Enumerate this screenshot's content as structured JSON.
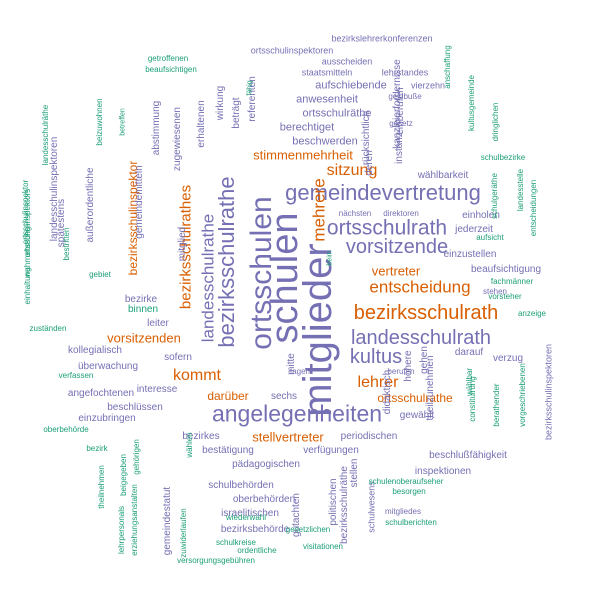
{
  "colors": {
    "purple": "#7570b3",
    "orange": "#d95f02",
    "green": "#1b9e77"
  },
  "words": [
    {
      "text": "mitglieder",
      "color": "purple",
      "rot": -90
    },
    {
      "text": "schulen",
      "color": "purple",
      "rot": -90
    },
    {
      "text": "ortsschulen",
      "color": "purple",
      "rot": -90
    },
    {
      "text": "angelegenheiten",
      "color": "purple",
      "rot": 0
    },
    {
      "text": "gemeindevertretung",
      "color": "purple",
      "rot": 0
    },
    {
      "text": "bezirksschulrathe",
      "color": "purple",
      "rot": -90
    },
    {
      "text": "ortsschulrath",
      "color": "purple",
      "rot": 0
    },
    {
      "text": "landesschulrath",
      "color": "purple",
      "rot": 0
    },
    {
      "text": "vorsitzende",
      "color": "purple",
      "rot": 0
    },
    {
      "text": "kultus",
      "color": "purple",
      "rot": 0
    },
    {
      "text": "bezirksschulrath",
      "color": "orange",
      "rot": 0
    },
    {
      "text": "landesschulrathe",
      "color": "purple",
      "rot": -90
    },
    {
      "text": "mehrere",
      "color": "orange",
      "rot": -90
    },
    {
      "text": "entscheidung",
      "color": "orange",
      "rot": 0
    },
    {
      "text": "bezirksschulrathes",
      "color": "orange",
      "rot": -90
    },
    {
      "text": "lehrer",
      "color": "orange",
      "rot": 0
    },
    {
      "text": "sitzung",
      "color": "orange",
      "rot": 0
    },
    {
      "text": "kommt",
      "color": "orange",
      "rot": 0
    },
    {
      "text": "stimmenmehrheit",
      "color": "orange",
      "rot": 0
    },
    {
      "text": "vertreter",
      "color": "orange",
      "rot": 0
    },
    {
      "text": "vorsitzenden",
      "color": "orange",
      "rot": 0
    },
    {
      "text": "stellvertreter",
      "color": "orange",
      "rot": 0
    },
    {
      "text": "darüber",
      "color": "orange",
      "rot": 0
    },
    {
      "text": "ortsschulrathe",
      "color": "orange",
      "rot": 0
    },
    {
      "text": "bezirksschulinspektor",
      "color": "orange",
      "rot": -90
    },
    {
      "text": "bezirksschulinspektoren",
      "color": "purple",
      "rot": -90
    },
    {
      "text": "bezirkslehrerkonferenzen",
      "color": "purple",
      "rot": 0
    },
    {
      "text": "ortsschulinspektoren",
      "color": "purple",
      "rot": 0
    },
    {
      "text": "ausscheiden",
      "color": "purple",
      "rot": 0
    },
    {
      "text": "staatsmitteln",
      "color": "purple",
      "rot": 0
    },
    {
      "text": "lehrstandes",
      "color": "purple",
      "rot": 0
    },
    {
      "text": "aufschiebende",
      "color": "purple",
      "rot": 0
    },
    {
      "text": "vierzehn",
      "color": "purple",
      "rot": 0
    },
    {
      "text": "geldbuße",
      "color": "purple",
      "rot": 0
    },
    {
      "text": "anwesenheit",
      "color": "purple",
      "rot": 0
    },
    {
      "text": "ortsschulräthe",
      "color": "purple",
      "rot": 0
    },
    {
      "text": "berechtiget",
      "color": "purple",
      "rot": 0
    },
    {
      "text": "beschwerden",
      "color": "purple",
      "rot": 0
    },
    {
      "text": "gesetz",
      "color": "purple",
      "rot": 0
    },
    {
      "text": "wählbarkeit",
      "color": "purple",
      "rot": 0
    },
    {
      "text": "nächsten",
      "color": "purple",
      "rot": 0
    },
    {
      "text": "direktoren",
      "color": "purple",
      "rot": 0
    },
    {
      "text": "einholen",
      "color": "purple",
      "rot": 0
    },
    {
      "text": "jederzeit",
      "color": "purple",
      "rot": 0
    },
    {
      "text": "einzustellen",
      "color": "purple",
      "rot": 0
    },
    {
      "text": "beaufsichtigung",
      "color": "purple",
      "rot": 0
    },
    {
      "text": "stehen",
      "color": "purple",
      "rot": 0
    },
    {
      "text": "darauf",
      "color": "purple",
      "rot": 0
    },
    {
      "text": "verzug",
      "color": "purple",
      "rot": 0
    },
    {
      "text": "berufen",
      "color": "purple",
      "rot": 0
    },
    {
      "text": "tagen",
      "color": "purple",
      "rot": 0
    },
    {
      "text": "sechs",
      "color": "purple",
      "rot": 0
    },
    {
      "text": "sofern",
      "color": "purple",
      "rot": 0
    },
    {
      "text": "interesse",
      "color": "purple",
      "rot": 0
    },
    {
      "text": "beschlüssen",
      "color": "purple",
      "rot": 0
    },
    {
      "text": "bezirkes",
      "color": "purple",
      "rot": 0
    },
    {
      "text": "bestätigung",
      "color": "purple",
      "rot": 0
    },
    {
      "text": "verfügungen",
      "color": "purple",
      "rot": 0
    },
    {
      "text": "periodischen",
      "color": "purple",
      "rot": 0
    },
    {
      "text": "gewählt",
      "color": "purple",
      "rot": 0
    },
    {
      "text": "pädagogischen",
      "color": "purple",
      "rot": 0
    },
    {
      "text": "schulbehörden",
      "color": "purple",
      "rot": 0
    },
    {
      "text": "oberbehörden",
      "color": "purple",
      "rot": 0
    },
    {
      "text": "israelitischen",
      "color": "purple",
      "rot": 0
    },
    {
      "text": "bezirksbehörde",
      "color": "purple",
      "rot": 0
    },
    {
      "text": "beschlußfähigkeit",
      "color": "purple",
      "rot": 0
    },
    {
      "text": "inspektionen",
      "color": "purple",
      "rot": 0
    },
    {
      "text": "bezirke",
      "color": "purple",
      "rot": 0
    },
    {
      "text": "leiter",
      "color": "purple",
      "rot": 0
    },
    {
      "text": "kollegialisch",
      "color": "purple",
      "rot": 0
    },
    {
      "text": "überwachung",
      "color": "purple",
      "rot": 0
    },
    {
      "text": "angefochtenen",
      "color": "purple",
      "rot": 0
    },
    {
      "text": "einzubringen",
      "color": "purple",
      "rot": 0
    },
    {
      "text": "mitgliedes",
      "color": "purple",
      "rot": 0
    },
    {
      "text": "mitglied",
      "color": "purple",
      "rot": -90
    },
    {
      "text": "gemeindemitteln",
      "color": "purple",
      "rot": -90
    },
    {
      "text": "außerordentliche",
      "color": "purple",
      "rot": -90
    },
    {
      "text": "landesschulinspektoren",
      "color": "purple",
      "rot": -90
    },
    {
      "text": "zugewiesenen",
      "color": "purple",
      "rot": -90
    },
    {
      "text": "abstimmung",
      "color": "purple",
      "rot": -90
    },
    {
      "text": "wirkung",
      "color": "purple",
      "rot": -90
    },
    {
      "text": "erhaltenen",
      "color": "purple",
      "rot": -90
    },
    {
      "text": "beträgt",
      "color": "purple",
      "rot": -90
    },
    {
      "text": "referenten",
      "color": "purple",
      "rot": -90
    },
    {
      "text": "deren",
      "color": "purple",
      "rot": -90
    },
    {
      "text": "rücksichtlich",
      "color": "purple",
      "rot": -90
    },
    {
      "text": "instanz",
      "color": "purple",
      "rot": -90
    },
    {
      "text": "einberufen",
      "color": "purple",
      "rot": -90
    },
    {
      "text": "kanzleierfordernisse",
      "color": "purple",
      "rot": -90
    },
    {
      "text": "gehen",
      "color": "purple",
      "rot": -90
    },
    {
      "text": "didaktisch",
      "color": "purple",
      "rot": -90
    },
    {
      "text": "höhere",
      "color": "purple",
      "rot": -90
    },
    {
      "text": "theilzunehmen",
      "color": "purple",
      "rot": -90
    },
    {
      "text": "mitte",
      "color": "purple",
      "rot": -90
    },
    {
      "text": "gutachten",
      "color": "purple",
      "rot": -90
    },
    {
      "text": "politischen",
      "color": "purple",
      "rot": -90
    },
    {
      "text": "stellen",
      "color": "purple",
      "rot": -90
    },
    {
      "text": "bezirksschulräthe",
      "color": "purple",
      "rot": -90
    },
    {
      "text": "schulwesens",
      "color": "purple",
      "rot": -90
    },
    {
      "text": "spätestens",
      "color": "purple",
      "rot": -90
    },
    {
      "text": "gemeindestatut",
      "color": "purple",
      "rot": -90
    },
    {
      "text": "getroffenen",
      "color": "green",
      "rot": 0
    },
    {
      "text": "beaufsichtigen",
      "color": "green",
      "rot": 0
    },
    {
      "text": "einhaltung",
      "color": "green",
      "rot": -90
    },
    {
      "text": "wahrnehmung",
      "color": "green",
      "rot": -90
    },
    {
      "text": "ortsschulinspektor",
      "color": "green",
      "rot": -90
    },
    {
      "text": "ortsschulinspektors",
      "color": "green",
      "rot": -90
    },
    {
      "text": "landesschulräthe",
      "color": "green",
      "rot": -90
    },
    {
      "text": "bestritten",
      "color": "green",
      "rot": -90
    },
    {
      "text": "beizuwohnen",
      "color": "green",
      "rot": -90
    },
    {
      "text": "betreffen",
      "color": "green",
      "rot": -90
    },
    {
      "text": "gebiet",
      "color": "green",
      "rot": 0
    },
    {
      "text": "binnen",
      "color": "green",
      "rot": 0
    },
    {
      "text": "zuständen",
      "color": "green",
      "rot": 0
    },
    {
      "text": "verfassen",
      "color": "green",
      "rot": 0
    },
    {
      "text": "oberbehörde",
      "color": "green",
      "rot": 0
    },
    {
      "text": "bezirk",
      "color": "green",
      "rot": 0
    },
    {
      "text": "theilnehmen",
      "color": "green",
      "rot": -90
    },
    {
      "text": "beigegeben",
      "color": "green",
      "rot": -90
    },
    {
      "text": "gehörigen",
      "color": "green",
      "rot": -90
    },
    {
      "text": "lehrpersonals",
      "color": "green",
      "rot": -90
    },
    {
      "text": "erziehungsanstalten",
      "color": "green",
      "rot": -90
    },
    {
      "text": "wählen",
      "color": "green",
      "rot": -90
    },
    {
      "text": "zuwiderlaufen",
      "color": "green",
      "rot": -90
    },
    {
      "text": "wiederwahl",
      "color": "green",
      "rot": 0
    },
    {
      "text": "schulkreise",
      "color": "green",
      "rot": 0
    },
    {
      "text": "ordentliche",
      "color": "green",
      "rot": 0
    },
    {
      "text": "versorgungsgebühren",
      "color": "green",
      "rot": 0
    },
    {
      "text": "gesetzlichen",
      "color": "green",
      "rot": 0
    },
    {
      "text": "visitationen",
      "color": "green",
      "rot": 0
    },
    {
      "text": "schulberichten",
      "color": "green",
      "rot": 0
    },
    {
      "text": "schulenoberaufseher",
      "color": "green",
      "rot": 0
    },
    {
      "text": "besorgen",
      "color": "green",
      "rot": 0
    },
    {
      "text": "schulbezirke",
      "color": "green",
      "rot": 0
    },
    {
      "text": "fachmänner",
      "color": "green",
      "rot": 0
    },
    {
      "text": "vorsteher",
      "color": "green",
      "rot": 0
    },
    {
      "text": "anzeige",
      "color": "green",
      "rot": 0
    },
    {
      "text": "aufsicht",
      "color": "green",
      "rot": 0
    },
    {
      "text": "fähig",
      "color": "green",
      "rot": -90
    },
    {
      "text": "anschaffung",
      "color": "green",
      "rot": -90
    },
    {
      "text": "kultusgemeinde",
      "color": "green",
      "rot": -90
    },
    {
      "text": "dringlichen",
      "color": "green",
      "rot": -90
    },
    {
      "text": "schulgeräthe",
      "color": "green",
      "rot": -90
    },
    {
      "text": "landesstelle",
      "color": "green",
      "rot": -90
    },
    {
      "text": "entscheidungen",
      "color": "green",
      "rot": -90
    },
    {
      "text": "beim",
      "color": "green",
      "rot": -90
    },
    {
      "text": "wählbar",
      "color": "green",
      "rot": -90
    },
    {
      "text": "constituirung",
      "color": "green",
      "rot": -90
    },
    {
      "text": "berathender",
      "color": "green",
      "rot": -90
    },
    {
      "text": "vorgeschriebenen",
      "color": "green",
      "rot": -90
    }
  ]
}
